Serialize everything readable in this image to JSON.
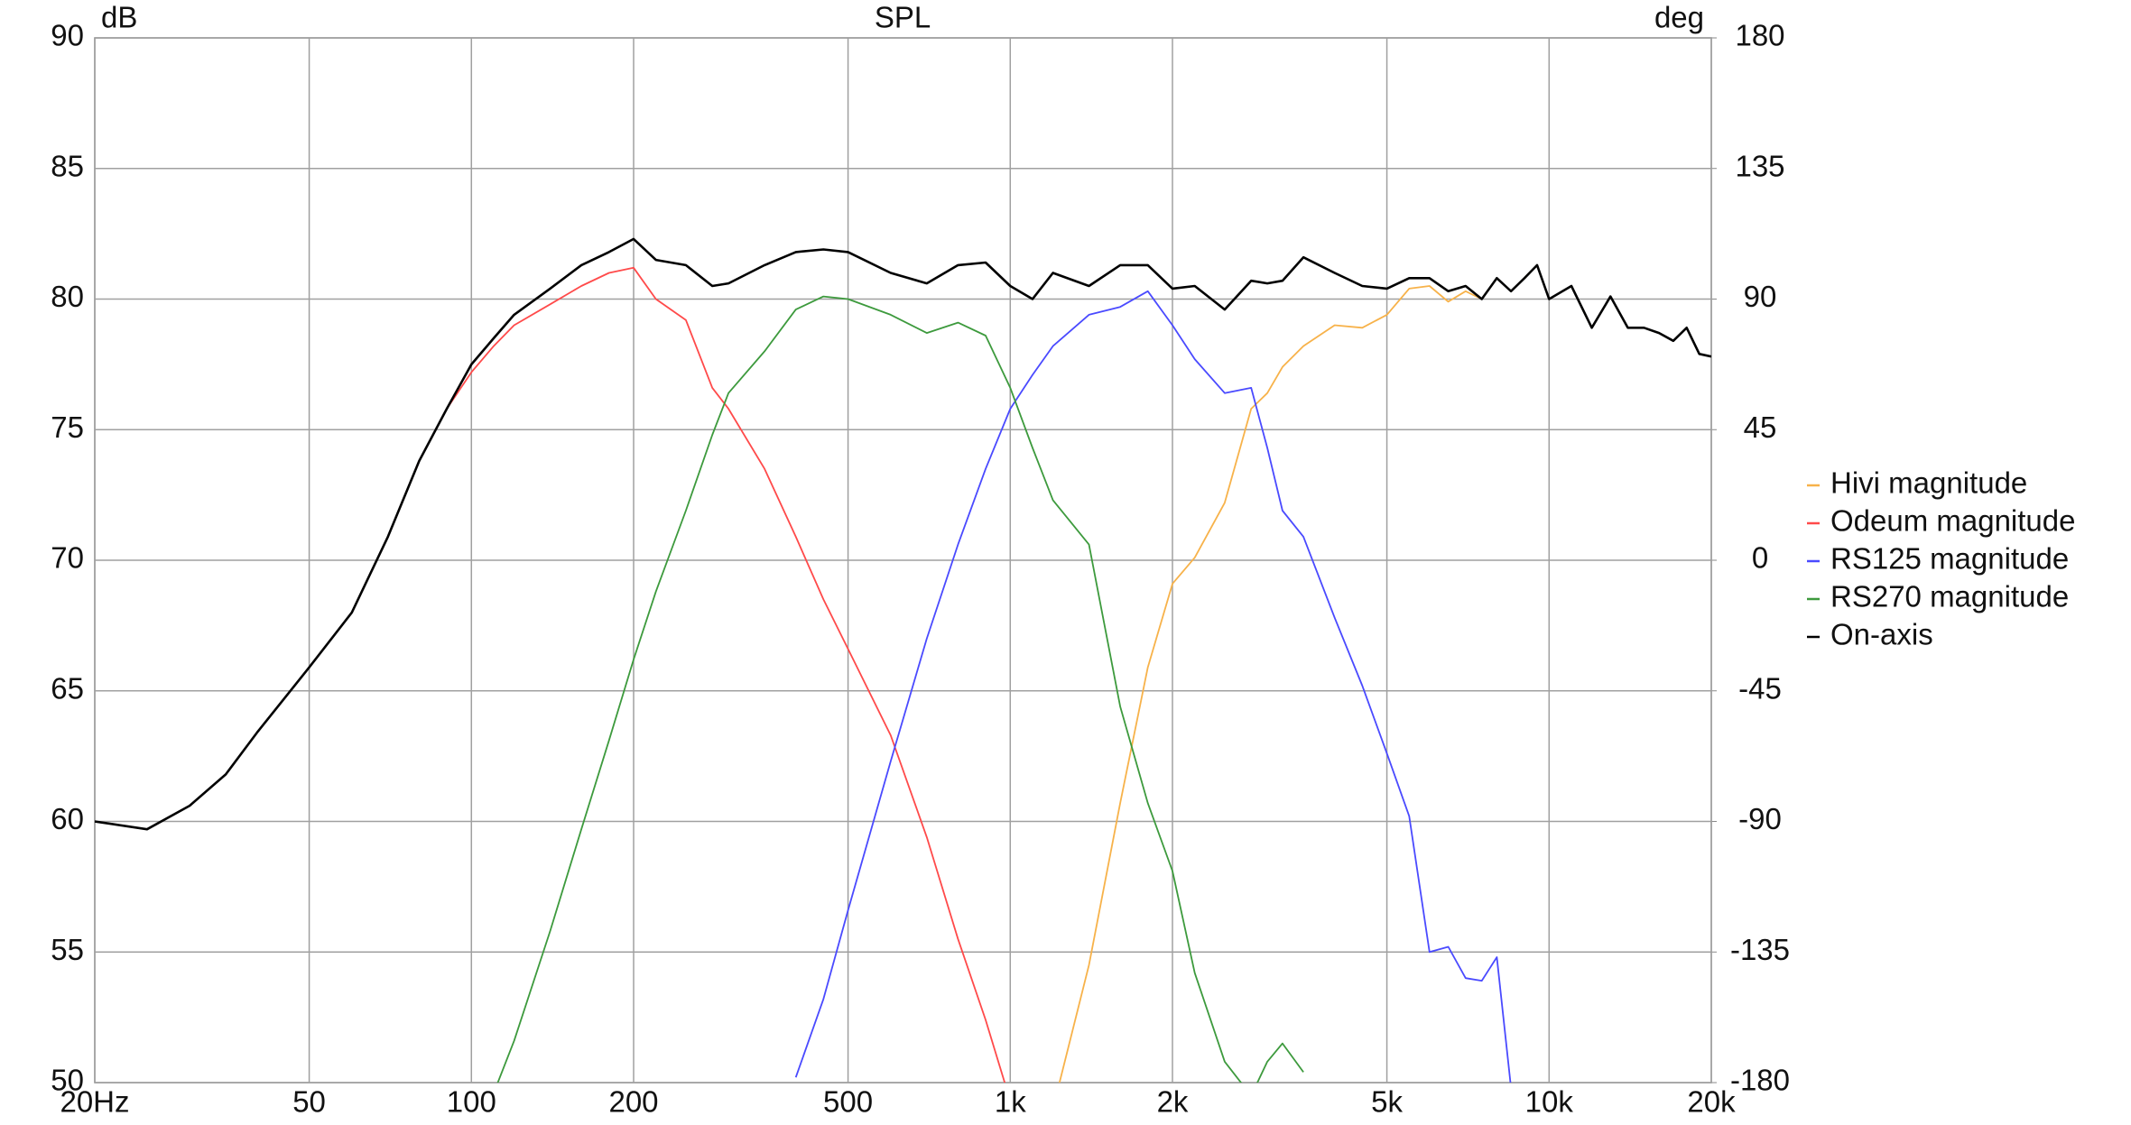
{
  "chart_data": {
    "type": "line",
    "title": "SPL",
    "y_label": "dB",
    "y2_label": "deg",
    "xscale": "log",
    "grid": true,
    "legend": "right",
    "xlim": [
      20,
      20000
    ],
    "xticks": [
      {
        "value": 20,
        "label": "20Hz"
      },
      50,
      100,
      200,
      500,
      {
        "value": 1000,
        "label": "1k"
      },
      {
        "value": 2000,
        "label": "2k"
      },
      {
        "value": 5000,
        "label": "5k"
      },
      {
        "value": 10000,
        "label": "10k"
      },
      {
        "value": 20000,
        "label": "20k"
      }
    ],
    "ylim": [
      50,
      90
    ],
    "yticks": [
      50,
      55,
      60,
      65,
      70,
      75,
      80,
      85,
      90
    ],
    "y2lim": [
      -180,
      180
    ],
    "y2ticks": [
      -180,
      -135,
      -90,
      -45,
      0,
      45,
      90,
      135,
      180
    ],
    "x": [
      20,
      25,
      30,
      35,
      40,
      50,
      60,
      70,
      80,
      90,
      100,
      110,
      120,
      140,
      160,
      180,
      200,
      220,
      250,
      280,
      300,
      350,
      400,
      450,
      500,
      600,
      700,
      800,
      900,
      1000,
      1100,
      1200,
      1400,
      1600,
      1800,
      2000,
      2200,
      2500,
      2800,
      3000,
      3200,
      3500,
      4000,
      4500,
      5000,
      5500,
      6000,
      6500,
      7000,
      7500,
      8000,
      8500,
      9000,
      9500,
      10000,
      11000,
      12000,
      13000,
      14000,
      15000,
      16000,
      17000,
      18000,
      19000,
      20000
    ],
    "series": [
      {
        "name": "Hivi magnitude",
        "color": "#f7b24a",
        "values": [
          null,
          null,
          null,
          null,
          null,
          null,
          null,
          null,
          null,
          null,
          null,
          null,
          null,
          null,
          null,
          null,
          null,
          null,
          null,
          null,
          null,
          null,
          null,
          null,
          null,
          null,
          null,
          null,
          null,
          null,
          null,
          49.0,
          54.5,
          60.7,
          65.9,
          69.1,
          70.1,
          72.2,
          75.8,
          76.4,
          77.4,
          78.2,
          79.0,
          78.9,
          79.4,
          80.4,
          80.5,
          79.9,
          80.3,
          80.0,
          80.8,
          80.3,
          80.8,
          81.3,
          80.0,
          80.5,
          78.9,
          80.1,
          78.9,
          78.9,
          78.7,
          78.4,
          78.9,
          77.9,
          77.8
        ]
      },
      {
        "name": "Odeum magnitude",
        "color": "#ff4a4a",
        "values": [
          60.0,
          59.7,
          60.6,
          61.8,
          63.4,
          65.9,
          68.0,
          70.9,
          73.8,
          75.8,
          77.2,
          78.2,
          79.0,
          79.8,
          80.5,
          81.0,
          81.2,
          80.0,
          79.2,
          76.6,
          75.8,
          73.5,
          70.9,
          68.5,
          66.6,
          63.3,
          59.4,
          55.5,
          52.4,
          49.3,
          null,
          null,
          null,
          null,
          null,
          null,
          null,
          null,
          null,
          null,
          null,
          null,
          null,
          null,
          null,
          null,
          null,
          null,
          null,
          null,
          null,
          null,
          null,
          null,
          null,
          null,
          null,
          null,
          null,
          null,
          null,
          null,
          null,
          null,
          null
        ]
      },
      {
        "name": "RS125 magnitude",
        "color": "#4a4aff",
        "values": [
          null,
          null,
          null,
          null,
          null,
          null,
          null,
          null,
          null,
          null,
          null,
          null,
          null,
          null,
          null,
          null,
          null,
          null,
          null,
          null,
          null,
          null,
          50.2,
          53.2,
          56.6,
          62.3,
          67.0,
          70.6,
          73.5,
          75.8,
          77.1,
          78.2,
          79.4,
          79.7,
          80.3,
          79.0,
          77.7,
          76.4,
          76.6,
          74.3,
          71.9,
          70.9,
          67.8,
          65.2,
          62.6,
          60.2,
          55.0,
          55.2,
          54.0,
          53.9,
          54.8,
          49.8,
          null,
          null,
          null,
          null,
          null,
          null,
          null,
          null,
          null,
          null,
          null,
          null,
          null
        ]
      },
      {
        "name": "RS270 magnitude",
        "color": "#3d9a3d",
        "values": [
          null,
          null,
          null,
          null,
          null,
          null,
          null,
          null,
          null,
          null,
          null,
          49.6,
          51.6,
          55.8,
          59.7,
          63.1,
          66.2,
          68.8,
          71.9,
          74.8,
          76.4,
          78.0,
          79.6,
          80.1,
          80.0,
          79.4,
          78.7,
          79.1,
          78.6,
          76.6,
          74.3,
          72.3,
          70.6,
          64.4,
          60.7,
          58.1,
          54.2,
          50.8,
          49.5,
          50.8,
          51.5,
          50.4,
          null,
          null,
          null,
          null,
          null,
          null,
          null,
          null,
          null,
          null,
          null,
          null,
          null,
          null,
          null,
          null,
          null,
          null,
          null,
          null,
          null,
          null,
          null
        ]
      },
      {
        "name": "On-axis",
        "color": "#000000",
        "values": [
          60.0,
          59.7,
          60.6,
          61.8,
          63.4,
          65.9,
          68.0,
          70.9,
          73.8,
          75.8,
          77.5,
          78.5,
          79.4,
          80.4,
          81.3,
          81.8,
          82.3,
          81.5,
          81.3,
          80.5,
          80.6,
          81.3,
          81.8,
          81.9,
          81.8,
          81.0,
          80.6,
          81.3,
          81.4,
          80.5,
          80.0,
          81.0,
          80.5,
          81.3,
          81.3,
          80.4,
          80.5,
          79.6,
          80.7,
          80.6,
          80.7,
          81.6,
          81.0,
          80.5,
          80.4,
          80.8,
          80.8,
          80.3,
          80.5,
          80.0,
          80.8,
          80.3,
          80.8,
          81.3,
          80.0,
          80.5,
          78.9,
          80.1,
          78.9,
          78.9,
          78.7,
          78.4,
          78.9,
          77.9,
          77.8
        ]
      }
    ]
  }
}
